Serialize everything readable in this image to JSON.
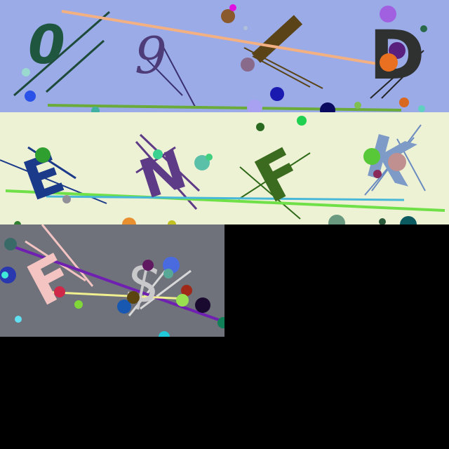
{
  "colors": {
    "page": "#000000",
    "panel_1": "#9aabe8",
    "panel_2": "#eef2d4",
    "panel_3": "#6f717b"
  },
  "panels": [
    {
      "glyphs": [
        {
          "char": "0",
          "color": "#1e5640"
        },
        {
          "char": "9",
          "color": "#4e3c78"
        },
        {
          "char": "D",
          "color": "#2f3030"
        }
      ]
    },
    {
      "glyphs": [
        {
          "char": "E",
          "color": "#1c3a8a"
        },
        {
          "char": "N",
          "color": "#5e3b87"
        },
        {
          "char": "F",
          "color": "#3b6b1e"
        },
        {
          "char": "K",
          "color": "#7d9bc6"
        }
      ]
    },
    {
      "glyphs": [
        {
          "char": "F",
          "color": "#f3c4c1"
        },
        {
          "char": "$",
          "color": "#c9c9cb"
        }
      ]
    }
  ]
}
